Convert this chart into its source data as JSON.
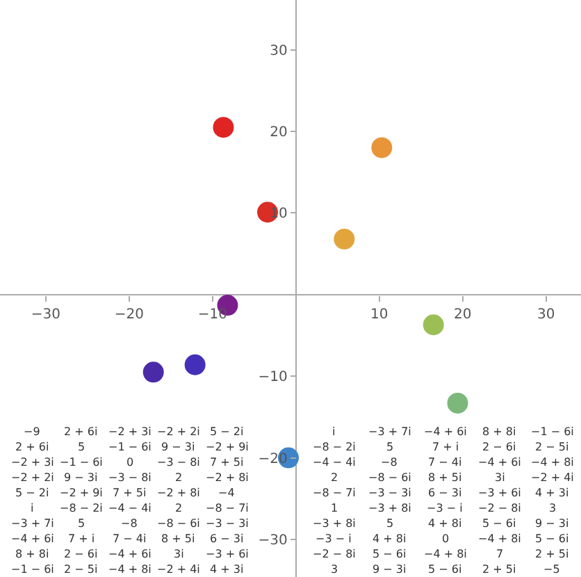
{
  "chart_data": {
    "type": "scatter",
    "marker": "circle",
    "x": [
      -8.7,
      -3.4,
      10.3,
      5.8,
      -8.2,
      -17.1,
      -12.1,
      16.5,
      19.4,
      -0.9
    ],
    "values": [
      20.5,
      10.1,
      18.0,
      6.8,
      -1.3,
      -9.5,
      -8.6,
      -3.7,
      -13.3,
      -20.0
    ],
    "colors": [
      "#e02424",
      "#d92e26",
      "#e8953a",
      "#e2a53c",
      "#7a1e8c",
      "#4b2aa8",
      "#4430b8",
      "#9bbf55",
      "#7bb87a",
      "#3f84c8"
    ],
    "xlim": [
      -35.5,
      34.2
    ],
    "ylim": [
      -34.6,
      36.1
    ],
    "xticks": [
      -30,
      -20,
      -10,
      10,
      20,
      30
    ],
    "yticks": [
      -30,
      -20,
      -10,
      10,
      20,
      30
    ],
    "annotations": [
      "−9",
      "2 + 6i",
      "−2 + 3i",
      "−2 + 2i",
      "5 − 2i",
      "i",
      "−3 + 7i",
      "−4 + 6i",
      "8 + 8i",
      "−1 − 6i",
      "2 + 6i",
      "5",
      "−1 − 6i",
      "9 − 3i",
      "−2 + 9i",
      "−8 − 2i",
      "5",
      "7 + i",
      "2 − 6i",
      "2 − 5i",
      "−2 + 3i",
      "−1 − 6i",
      "0",
      "−3 − 8i",
      "7 + 5i",
      "−4 − 4i",
      "−8",
      "7 − 4i",
      "−4 + 6i",
      "−4 + 8i",
      "−2 + 2i",
      "9 − 3i",
      "−3 − 8i",
      "2",
      "−2 + 8i",
      "2",
      "−8 − 6i",
      "8 + 5i",
      "3i",
      "−2 + 4i",
      "5 − 2i",
      "−2 + 9i",
      "7 + 5i",
      "−2 + 8i",
      "−4",
      "−8 − 7i",
      "−3 − 3i",
      "6 − 3i",
      "−3 + 6i",
      "4 + 3i",
      "i",
      "−8 − 2i",
      "−4 − 4i",
      "2",
      "−8 − 7i",
      "1",
      "−3 + 8i",
      "−3 − i",
      "−2 − 8i",
      "3",
      "−3 + 7i",
      "5",
      "−8",
      "−8 − 6i",
      "−3 − 3i",
      "−3 + 8i",
      "5",
      "4 + 8i",
      "5 − 6i",
      "9 − 3i",
      "−4 + 6i",
      "7 + i",
      "7 − 4i",
      "8 + 5i",
      "6 − 3i",
      "−3 − i",
      "4 + 8i",
      "0",
      "−4 + 8i",
      "5 − 6i",
      "8 + 8i",
      "2 − 6i",
      "−4 + 6i",
      "3i",
      "−3 + 6i",
      "−2 − 8i",
      "5 − 6i",
      "−4 + 8i",
      "7",
      "2 + 5i",
      "−1 − 6i",
      "2 − 5i",
      "−4 + 8i",
      "−2 + 4i",
      "4 + 3i",
      "3",
      "9 − 3i",
      "5 − 6i",
      "2 + 5i",
      "−5"
    ]
  }
}
